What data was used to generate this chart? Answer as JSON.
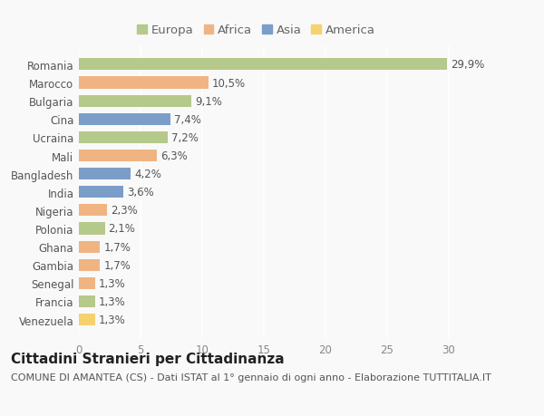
{
  "categories": [
    "Romania",
    "Marocco",
    "Bulgaria",
    "Cina",
    "Ucraina",
    "Mali",
    "Bangladesh",
    "India",
    "Nigeria",
    "Polonia",
    "Ghana",
    "Gambia",
    "Senegal",
    "Francia",
    "Venezuela"
  ],
  "values": [
    29.9,
    10.5,
    9.1,
    7.4,
    7.2,
    6.3,
    4.2,
    3.6,
    2.3,
    2.1,
    1.7,
    1.7,
    1.3,
    1.3,
    1.3
  ],
  "labels": [
    "29,9%",
    "10,5%",
    "9,1%",
    "7,4%",
    "7,2%",
    "6,3%",
    "4,2%",
    "3,6%",
    "2,3%",
    "2,1%",
    "1,7%",
    "1,7%",
    "1,3%",
    "1,3%",
    "1,3%"
  ],
  "continents": [
    "Europa",
    "Africa",
    "Europa",
    "Asia",
    "Europa",
    "Africa",
    "Asia",
    "Asia",
    "Africa",
    "Europa",
    "Africa",
    "Africa",
    "Africa",
    "Europa",
    "America"
  ],
  "colors": {
    "Europa": "#b5c98a",
    "Africa": "#f0b482",
    "Asia": "#7a9ec8",
    "America": "#f5d26e"
  },
  "legend_order": [
    "Europa",
    "Africa",
    "Asia",
    "America"
  ],
  "xlim": [
    0,
    32
  ],
  "xticks": [
    0,
    5,
    10,
    15,
    20,
    25,
    30
  ],
  "title": "Cittadini Stranieri per Cittadinanza",
  "subtitle": "COMUNE DI AMANTEA (CS) - Dati ISTAT al 1° gennaio di ogni anno - Elaborazione TUTTITALIA.IT",
  "background_color": "#f9f9f9",
  "grid_color": "#ffffff",
  "bar_height": 0.65,
  "label_fontsize": 8.5,
  "title_fontsize": 11,
  "subtitle_fontsize": 8,
  "ytick_fontsize": 8.5,
  "xtick_fontsize": 8.5,
  "legend_fontsize": 9.5
}
